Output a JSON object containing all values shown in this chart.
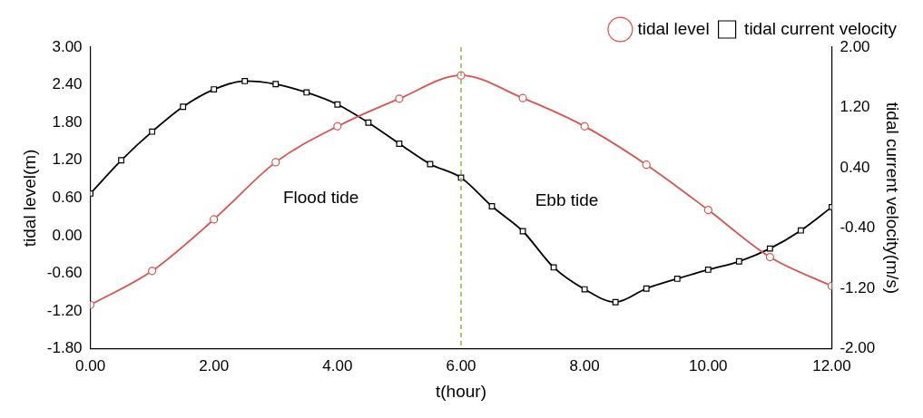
{
  "chart_data": {
    "type": "line",
    "xlabel": "t(hour)",
    "ylabel": "tidal level(m)",
    "y2label": "tidal current velocity(m/s)",
    "xlim": [
      0,
      12
    ],
    "xticks": [
      {
        "value": 0,
        "label": "0.00"
      },
      {
        "value": 2,
        "label": "2.00"
      },
      {
        "value": 4,
        "label": "4.00"
      },
      {
        "value": 6,
        "label": "6.00"
      },
      {
        "value": 8,
        "label": "8.00"
      },
      {
        "value": 10,
        "label": "10.00"
      },
      {
        "value": 12,
        "label": "12.00"
      }
    ],
    "ylim": [
      -1.8,
      3
    ],
    "yticks": [
      {
        "value": -1.8,
        "label": "-1.80"
      },
      {
        "value": -1.2,
        "label": "-1.20"
      },
      {
        "value": -0.6,
        "label": "-0.60"
      },
      {
        "value": 0,
        "label": "0.00"
      },
      {
        "value": 0.6,
        "label": "0.60"
      },
      {
        "value": 1.2,
        "label": "1.20"
      },
      {
        "value": 1.8,
        "label": "1.80"
      },
      {
        "value": 2.4,
        "label": "2.40"
      },
      {
        "value": 3,
        "label": "3.00"
      }
    ],
    "y2lim": [
      -2,
      2
    ],
    "y2ticks": [
      {
        "value": -2,
        "label": "-2.00"
      },
      {
        "value": -1.2,
        "label": "-1.20"
      },
      {
        "value": -0.4,
        "label": "-0.40"
      },
      {
        "value": 0.4,
        "label": "0.40"
      },
      {
        "value": 1.2,
        "label": "1.20"
      },
      {
        "value": 2,
        "label": "2.00"
      }
    ],
    "series": [
      {
        "name": "tidal level",
        "color": "#d9534f",
        "marker": "circle",
        "x": [
          0,
          1,
          2,
          3,
          4,
          5,
          6,
          7,
          8,
          9,
          10,
          11,
          12
        ],
        "values": [
          -1.1,
          -0.56,
          0.26,
          1.17,
          1.74,
          2.18,
          2.55,
          2.19,
          1.74,
          1.13,
          0.41,
          -0.34,
          -0.8
        ]
      },
      {
        "name": "tidal current velocity",
        "color": "#000000",
        "marker": "square",
        "axis": "y2",
        "x": [
          0,
          0.5,
          1,
          1.5,
          2,
          2.5,
          3,
          3.5,
          4,
          4.5,
          5,
          5.5,
          6,
          6.5,
          7,
          7.5,
          8,
          8.5,
          9,
          9.5,
          10,
          10.5,
          11,
          11.5,
          12
        ],
        "values": [
          0.06,
          0.5,
          0.88,
          1.21,
          1.44,
          1.55,
          1.51,
          1.4,
          1.24,
          1.0,
          0.72,
          0.45,
          0.27,
          -0.11,
          -0.44,
          -0.92,
          -1.21,
          -1.38,
          -1.2,
          -1.07,
          -0.95,
          -0.84,
          -0.67,
          -0.43,
          -0.12
        ]
      }
    ],
    "ref_lines": [
      {
        "axis": "x",
        "value": 6,
        "color": "#8db83c",
        "line_style": "dashed"
      }
    ],
    "annotations": [
      "Flood tide",
      "Ebb tide"
    ],
    "grid": false,
    "legend": "top right"
  }
}
